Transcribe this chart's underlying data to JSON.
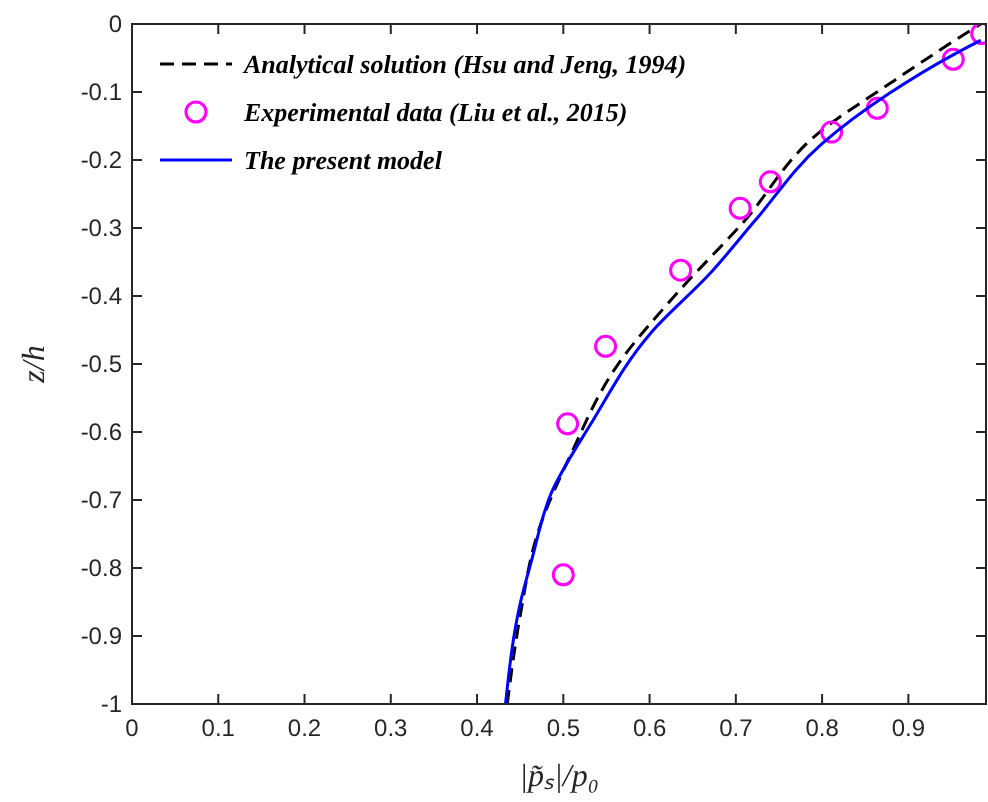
{
  "chart_data": {
    "type": "line",
    "xlabel": "|p̃ₛ|/p₀",
    "ylabel": "z/h",
    "xlim": [
      0,
      0.99
    ],
    "ylim": [
      -1,
      0
    ],
    "xticks": [
      0,
      0.1,
      0.2,
      0.3,
      0.4,
      0.5,
      0.6,
      0.7,
      0.8,
      0.9
    ],
    "yticks": [
      -1,
      -0.9,
      -0.8,
      -0.7,
      -0.6,
      -0.5,
      -0.4,
      -0.3,
      -0.2,
      -0.1,
      0
    ],
    "grid": false,
    "legend": "top",
    "series": [
      {
        "name": "Analytical solution (Hsu and Jeng, 1994)",
        "type": "line",
        "color": "#000000",
        "line_style": "dashed",
        "marker": "none",
        "x": [
          0.435,
          0.45,
          0.47,
          0.509,
          0.562,
          0.631,
          0.707,
          0.8,
          0.878,
          0.954,
          0.984
        ],
        "values": [
          -1,
          -0.87,
          -0.75,
          -0.632,
          -0.503,
          -0.397,
          -0.294,
          -0.156,
          -0.088,
          -0.024,
          0
        ]
      },
      {
        "name": "Experimental data (Liu et al., 2015)",
        "type": "scatter",
        "color": "#ff00ff",
        "marker": "circle",
        "x": [
          0.5,
          0.505,
          0.549,
          0.636,
          0.705,
          0.74,
          0.811,
          0.864,
          0.952,
          0.985
        ],
        "values": [
          -0.81,
          -0.588,
          -0.474,
          -0.362,
          -0.271,
          -0.232,
          -0.159,
          -0.124,
          -0.052,
          -0.014
        ]
      },
      {
        "name": "The present model",
        "type": "line",
        "color": "#0000ff",
        "line_style": "solid",
        "marker": "none",
        "x": [
          0.433,
          0.451,
          0.463,
          0.486,
          0.532,
          0.601,
          0.67,
          0.723,
          0.8,
          0.878,
          0.954,
          0.984
        ],
        "values": [
          -1,
          -0.847,
          -0.79,
          -0.69,
          -0.588,
          -0.455,
          -0.367,
          -0.288,
          -0.176,
          -0.102,
          -0.044,
          -0.024
        ]
      }
    ]
  }
}
